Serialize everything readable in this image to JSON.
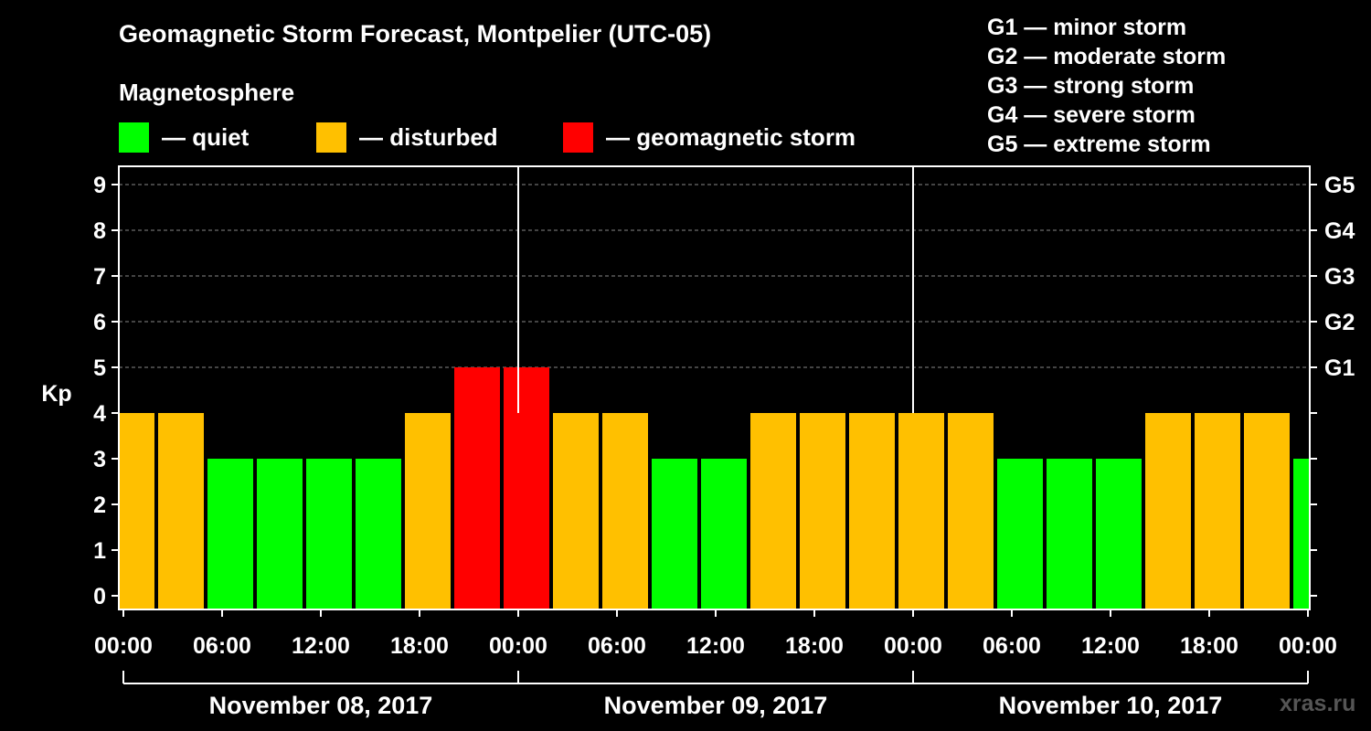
{
  "title": "Geomagnetic Storm Forecast, Montpelier (UTC-05)",
  "subtitle": "Magnetosphere",
  "legend": [
    {
      "label": "— quiet",
      "color": "#00ff00"
    },
    {
      "label": "— disturbed",
      "color": "#ffc000"
    },
    {
      "label": "— geomagnetic storm",
      "color": "#ff0000"
    }
  ],
  "g_legend": [
    "G1 — minor storm",
    "G2 — moderate storm",
    "G3 — strong storm",
    "G4 — severe storm",
    "G5 — extreme storm"
  ],
  "watermark": "xras.ru",
  "chart_data": {
    "type": "bar",
    "ylabel": "Kp",
    "ylim": [
      0,
      9
    ],
    "yticks": [
      "0",
      "1",
      "2",
      "3",
      "4",
      "5",
      "6",
      "7",
      "8",
      "9"
    ],
    "right_ticks": [
      {
        "kp": 5,
        "label": "G1"
      },
      {
        "kp": 6,
        "label": "G2"
      },
      {
        "kp": 7,
        "label": "G3"
      },
      {
        "kp": 8,
        "label": "G4"
      },
      {
        "kp": 9,
        "label": "G5"
      }
    ],
    "grid": "dashed horizontal at Kp 5-9",
    "xticks": [
      "00:00",
      "06:00",
      "12:00",
      "18:00",
      "00:00",
      "06:00",
      "12:00",
      "18:00",
      "00:00",
      "06:00",
      "12:00",
      "18:00",
      "00:00"
    ],
    "dates": [
      "November 08, 2017",
      "November 09, 2017",
      "November 10, 2017"
    ],
    "x_range_hours": [
      0,
      72
    ],
    "bars": [
      {
        "start_hour": -1,
        "end_hour": 2,
        "kp": 4,
        "level": "disturbed"
      },
      {
        "start_hour": 2,
        "end_hour": 5,
        "kp": 4,
        "level": "disturbed"
      },
      {
        "start_hour": 5,
        "end_hour": 8,
        "kp": 3,
        "level": "quiet"
      },
      {
        "start_hour": 8,
        "end_hour": 11,
        "kp": 3,
        "level": "quiet"
      },
      {
        "start_hour": 11,
        "end_hour": 14,
        "kp": 3,
        "level": "quiet"
      },
      {
        "start_hour": 14,
        "end_hour": 17,
        "kp": 3,
        "level": "quiet"
      },
      {
        "start_hour": 17,
        "end_hour": 20,
        "kp": 4,
        "level": "disturbed"
      },
      {
        "start_hour": 20,
        "end_hour": 23,
        "kp": 5,
        "level": "storm"
      },
      {
        "start_hour": 23,
        "end_hour": 26,
        "kp": 5,
        "level": "storm"
      },
      {
        "start_hour": 26,
        "end_hour": 29,
        "kp": 4,
        "level": "disturbed"
      },
      {
        "start_hour": 29,
        "end_hour": 32,
        "kp": 4,
        "level": "disturbed"
      },
      {
        "start_hour": 32,
        "end_hour": 35,
        "kp": 3,
        "level": "quiet"
      },
      {
        "start_hour": 35,
        "end_hour": 38,
        "kp": 3,
        "level": "quiet"
      },
      {
        "start_hour": 38,
        "end_hour": 41,
        "kp": 4,
        "level": "disturbed"
      },
      {
        "start_hour": 41,
        "end_hour": 44,
        "kp": 4,
        "level": "disturbed"
      },
      {
        "start_hour": 44,
        "end_hour": 47,
        "kp": 4,
        "level": "disturbed"
      },
      {
        "start_hour": 47,
        "end_hour": 50,
        "kp": 4,
        "level": "disturbed"
      },
      {
        "start_hour": 50,
        "end_hour": 53,
        "kp": 4,
        "level": "disturbed"
      },
      {
        "start_hour": 53,
        "end_hour": 56,
        "kp": 3,
        "level": "quiet"
      },
      {
        "start_hour": 56,
        "end_hour": 59,
        "kp": 3,
        "level": "quiet"
      },
      {
        "start_hour": 59,
        "end_hour": 62,
        "kp": 3,
        "level": "quiet"
      },
      {
        "start_hour": 62,
        "end_hour": 65,
        "kp": 4,
        "level": "disturbed"
      },
      {
        "start_hour": 65,
        "end_hour": 68,
        "kp": 4,
        "level": "disturbed"
      },
      {
        "start_hour": 68,
        "end_hour": 71,
        "kp": 4,
        "level": "disturbed"
      },
      {
        "start_hour": 71,
        "end_hour": 74,
        "kp": 3,
        "level": "quiet"
      }
    ],
    "level_colors": {
      "quiet": "#00ff00",
      "disturbed": "#ffc000",
      "storm": "#ff0000"
    }
  }
}
